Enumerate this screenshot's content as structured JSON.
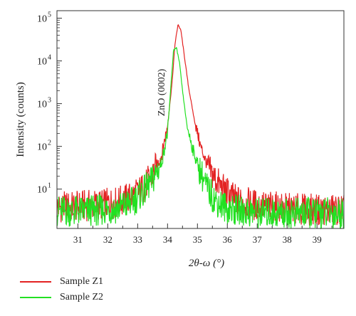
{
  "chart_data": {
    "type": "line",
    "title": "",
    "xlabel": "2θ-ω (°)",
    "ylabel": "Intensity (counts)",
    "y_scale": "log",
    "xlim": [
      30.3,
      39.9
    ],
    "ylim": [
      1.2,
      150000
    ],
    "grid": false,
    "legend_position": "bottom-left, below plot",
    "annotation": "ZnO (0002)",
    "x_ticks": [
      "31",
      "32",
      "33",
      "34",
      "35",
      "36",
      "37",
      "38",
      "39"
    ],
    "y_ticks": [
      {
        "base": "10",
        "exp": "5",
        "value": 100000
      },
      {
        "base": "10",
        "exp": "4",
        "value": 10000
      },
      {
        "base": "10",
        "exp": "3",
        "value": 1000
      },
      {
        "base": "10",
        "exp": "2",
        "value": 100
      },
      {
        "base": "10",
        "exp": "1",
        "value": 10
      }
    ],
    "series": [
      {
        "name": "Sample Z1",
        "color": "#e32222",
        "x": [
          30.3,
          30.8,
          31.3,
          31.8,
          32.3,
          32.8,
          33.2,
          33.5,
          33.8,
          34.0,
          34.15,
          34.25,
          34.35,
          34.45,
          34.55,
          34.7,
          34.9,
          35.1,
          35.4,
          35.8,
          36.3,
          37.0,
          38.0,
          39.0,
          39.9
        ],
        "y": [
          3.5,
          3.5,
          3.8,
          4.0,
          4.5,
          6.0,
          10.0,
          20.0,
          60.0,
          300.0,
          3000.0,
          25000.0,
          72000.0,
          50000.0,
          15000.0,
          2500.0,
          400.0,
          100.0,
          25.0,
          10.0,
          5.0,
          3.8,
          3.2,
          3.0,
          3.0
        ]
      },
      {
        "name": "Sample Z2",
        "color": "#22e022",
        "x": [
          30.3,
          30.8,
          31.3,
          31.8,
          32.3,
          32.8,
          33.2,
          33.5,
          33.8,
          34.0,
          34.1,
          34.2,
          34.3,
          34.4,
          34.5,
          34.65,
          34.85,
          35.05,
          35.3,
          35.6,
          36.0,
          36.5,
          37.0,
          38.0,
          39.0,
          39.9
        ],
        "y": [
          2.8,
          2.8,
          2.8,
          3.0,
          3.2,
          4.5,
          8.0,
          15.0,
          40.0,
          200.0,
          2000.0,
          18000.0,
          20000.0,
          9000.0,
          2000.0,
          300.0,
          80.0,
          30.0,
          10.0,
          5.0,
          3.2,
          2.8,
          2.6,
          2.5,
          2.5,
          2.5
        ]
      }
    ]
  }
}
